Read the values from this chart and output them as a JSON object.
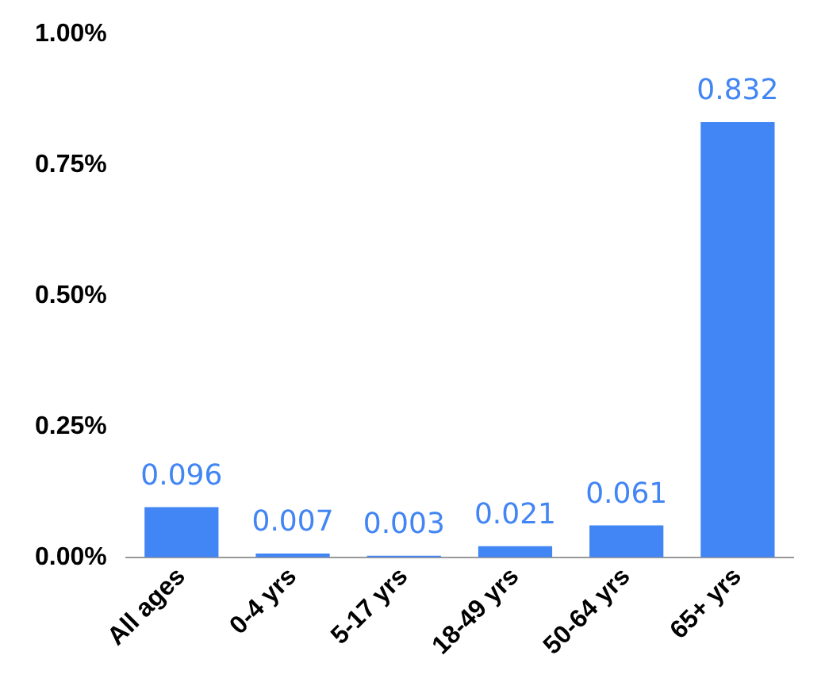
{
  "chart_data": {
    "type": "bar",
    "categories": [
      "All ages",
      "0-4 yrs",
      "5-17 yrs",
      "18-49 yrs",
      "50-64 yrs",
      "65+ yrs"
    ],
    "values": [
      0.096,
      0.007,
      0.003,
      0.021,
      0.061,
      0.832
    ],
    "color": "#4285f4",
    "ylim": [
      0,
      1
    ],
    "yticks": [
      {
        "value": 0,
        "label": "0.00%"
      },
      {
        "value": 0.25,
        "label": "0.25%"
      },
      {
        "value": 0.5,
        "label": "0.50%"
      },
      {
        "value": 0.75,
        "label": "0.75%"
      },
      {
        "value": 1,
        "label": "1.00%"
      }
    ],
    "data_labels": true,
    "grid": false,
    "legend": false
  }
}
